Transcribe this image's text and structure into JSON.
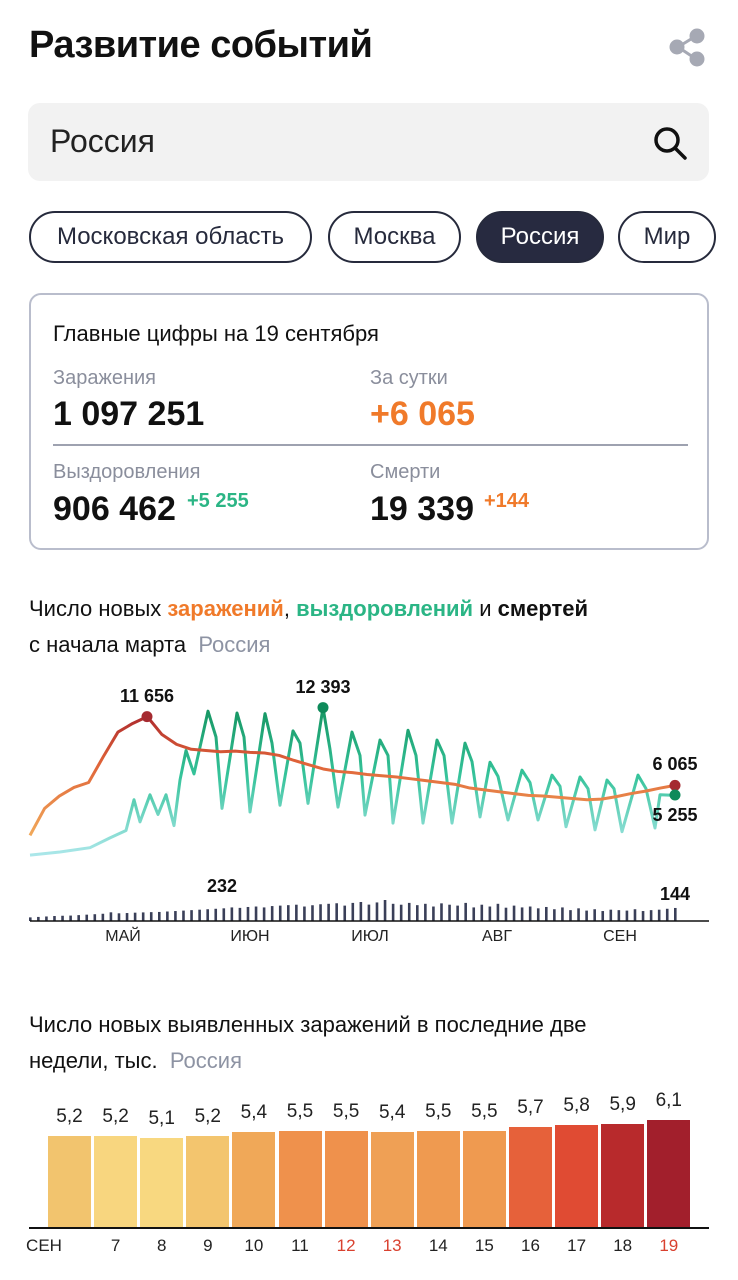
{
  "header": {
    "title": "Развитие событий",
    "share_icon": "share-icon"
  },
  "search": {
    "value": "Россия",
    "icon": "search-icon"
  },
  "chips": [
    {
      "label": "Московская область",
      "active": false
    },
    {
      "label": "Москва",
      "active": false
    },
    {
      "label": "Россия",
      "active": true
    },
    {
      "label": "Мир",
      "active": false
    }
  ],
  "summary": {
    "heading": "Главные цифры на 19 сентября",
    "infections_label": "Заражения",
    "infections": "1 097 251",
    "daily_label": "За сутки",
    "daily": "+6 065",
    "recoveries_label": "Выздоровления",
    "recoveries": "906 462",
    "recoveries_delta": "+5 255",
    "deaths_label": "Смерти",
    "deaths": "19 339",
    "deaths_delta": "+144"
  },
  "colors": {
    "orange": "#f07a2a",
    "green": "#2bb585",
    "dark": "#272a40",
    "red_day": "#d9412f"
  },
  "line_chart_title": {
    "p1": "Число новых ",
    "infections": "заражений",
    ",": ", ",
    "recoveries": "выздоровлений",
    "and": " и ",
    "deaths": "смертей",
    "line2": "с начала марта",
    "region": "Россия"
  },
  "bar_chart_title": {
    "line1": "Число новых выявленных заражений в последние две",
    "line2": "недели, тыс.",
    "region": "Россия"
  },
  "chart_data": [
    {
      "type": "line",
      "title": "Число новых заражений, выздоровлений и смертей с начала марта",
      "x_unit": "days from first visible day",
      "x_ticks": [
        {
          "label": "МАЙ",
          "day": 23.25
        },
        {
          "label": "ИЮН",
          "day": 55
        },
        {
          "label": "ИЮЛ",
          "day": 85
        },
        {
          "label": "АВГ",
          "day": 116.75
        },
        {
          "label": "СЕН",
          "day": 147.5
        }
      ],
      "x_range": [
        0,
        161.25
      ],
      "annotations": [
        {
          "series": "infections",
          "label": "11 656",
          "day": 29.25,
          "value": 11656
        },
        {
          "series": "recoveries",
          "label": "12 393",
          "day": 73.25,
          "value": 12393
        },
        {
          "series": "infections",
          "label": "6 065",
          "day": 161.25,
          "value": 6065
        },
        {
          "series": "recoveries",
          "label": "5 255",
          "day": 161.25,
          "value": 5255
        },
        {
          "series": "deaths",
          "label": "232",
          "day": 48,
          "value": 232
        },
        {
          "series": "deaths",
          "label": "144",
          "day": 161.25,
          "value": 144
        }
      ],
      "series": [
        {
          "name": "infections",
          "color": "#e0683a",
          "values": [
            2000,
            4200,
            5200,
            5900,
            6300,
            8400,
            10400,
            11100,
            11656,
            10200,
            9400,
            9000,
            8900,
            8800,
            8850,
            8750,
            8700,
            8500,
            8100,
            7750,
            7400,
            7200,
            7100,
            6950,
            6850,
            6750,
            6600,
            6450,
            6300,
            6150,
            5850,
            5700,
            5550,
            5400,
            5250,
            5200,
            5100,
            5000,
            4900,
            4950,
            5150,
            5400,
            5600,
            5850,
            6065
          ]
        },
        {
          "name": "recoveries",
          "color": "#2bb585",
          "points": [
            [
              0,
              400
            ],
            [
              7.5,
              650
            ],
            [
              15,
              1000
            ],
            [
              20,
              1800
            ],
            [
              24,
              2400
            ],
            [
              26,
              4900
            ],
            [
              27.5,
              3100
            ],
            [
              30,
              5300
            ],
            [
              32,
              3700
            ],
            [
              34,
              5300
            ],
            [
              36,
              2800
            ],
            [
              37.5,
              6500
            ],
            [
              39,
              8900
            ],
            [
              41,
              7000
            ],
            [
              44.5,
              12100
            ],
            [
              46.5,
              10000
            ],
            [
              48,
              4200
            ],
            [
              51.75,
              11950
            ],
            [
              53.5,
              10000
            ],
            [
              55,
              3900
            ],
            [
              58.75,
              11900
            ],
            [
              60.5,
              9500
            ],
            [
              62.5,
              4450
            ],
            [
              65.75,
              10500
            ],
            [
              67.5,
              9500
            ],
            [
              69.5,
              4600
            ],
            [
              73.25,
              12393
            ],
            [
              75,
              9000
            ],
            [
              77,
              4300
            ],
            [
              80.5,
              10400
            ],
            [
              82.5,
              8500
            ],
            [
              83.75,
              3650
            ],
            [
              87.5,
              9750
            ],
            [
              89.5,
              8500
            ],
            [
              90.75,
              3000
            ],
            [
              94.5,
              10550
            ],
            [
              96.5,
              8500
            ],
            [
              98.25,
              3000
            ],
            [
              101.75,
              9750
            ],
            [
              103.5,
              8500
            ],
            [
              105.5,
              3000
            ],
            [
              108.75,
              9500
            ],
            [
              110.5,
              8000
            ],
            [
              112.5,
              3500
            ],
            [
              115,
              7950
            ],
            [
              117,
              6800
            ],
            [
              119.5,
              3250
            ],
            [
              123,
              7300
            ],
            [
              125,
              6300
            ],
            [
              127,
              3250
            ],
            [
              130.5,
              6900
            ],
            [
              132.5,
              6000
            ],
            [
              134,
              2700
            ],
            [
              137.5,
              6750
            ],
            [
              139.5,
              5800
            ],
            [
              141.25,
              2450
            ],
            [
              144.25,
              6500
            ],
            [
              146,
              5800
            ],
            [
              148,
              2300
            ],
            [
              152,
              6900
            ],
            [
              154,
              5800
            ],
            [
              156.25,
              2600
            ],
            [
              157.5,
              5300
            ],
            [
              161.25,
              5255
            ]
          ]
        },
        {
          "name": "deaths",
          "color": "#3a3f58",
          "values": [
            40,
            45,
            50,
            55,
            58,
            60,
            65,
            70,
            75,
            80,
            96,
            85,
            88,
            92,
            95,
            98,
            100,
            105,
            110,
            115,
            120,
            125,
            130,
            135,
            140,
            150,
            145,
            155,
            160,
            150,
            165,
            170,
            175,
            180,
            160,
            174,
            185,
            190,
            196,
            170,
            200,
            210,
            181,
            205,
            232,
            190,
            180,
            200,
            175,
            190,
            160,
            195,
            180,
            170,
            200,
            150,
            180,
            160,
            190,
            147,
            170,
            150,
            160,
            140,
            155,
            130,
            150,
            120,
            140,
            115,
            130,
            110,
            125,
            120,
            115,
            130,
            110,
            120,
            125,
            135,
            144
          ]
        }
      ]
    },
    {
      "type": "bar",
      "title": "Число новых выявленных заражений в последние две недели, тыс.",
      "month_label": "СЕН",
      "categories": [
        "6",
        "7",
        "8",
        "9",
        "10",
        "11",
        "12",
        "13",
        "14",
        "15",
        "16",
        "17",
        "18",
        "19"
      ],
      "tick_labels": [
        "СЕН",
        "7",
        "8",
        "9",
        "10",
        "11",
        "12",
        "13",
        "14",
        "15",
        "16",
        "17",
        "18",
        "19"
      ],
      "highlighted_ticks": [
        "12",
        "13",
        "19"
      ],
      "values": [
        5.2,
        5.2,
        5.1,
        5.2,
        5.4,
        5.5,
        5.5,
        5.4,
        5.5,
        5.5,
        5.7,
        5.8,
        5.9,
        6.1
      ],
      "value_labels": [
        "5,2",
        "5,2",
        "5,1",
        "5,2",
        "5,4",
        "5,5",
        "5,5",
        "5,4",
        "5,5",
        "5,5",
        "5,7",
        "5,8",
        "5,9",
        "6,1"
      ],
      "colors": [
        "#f2c46e",
        "#f8d67f",
        "#f8d880",
        "#f3c56e",
        "#f0a858",
        "#ef914c",
        "#ef914c",
        "#efa055",
        "#ef9a50",
        "#ef9a50",
        "#e6613a",
        "#e04b33",
        "#b82a2c",
        "#a21f2c"
      ],
      "ylim": [
        0,
        6.1
      ]
    }
  ]
}
